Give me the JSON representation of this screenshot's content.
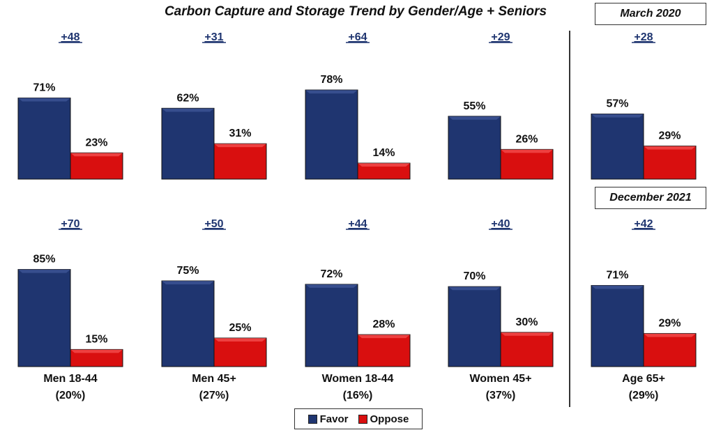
{
  "chart_data": {
    "type": "bar",
    "title": "Carbon Capture and Storage Trend by Gender/Age + Seniors",
    "periods": [
      "March 2020",
      "December 2021"
    ],
    "series_names": [
      "Favor",
      "Oppose"
    ],
    "colors": {
      "favor": "#1f3570",
      "oppose": "#d90f0f",
      "diff": "#1f3570"
    },
    "categories": [
      {
        "name": "Men 18-44",
        "share": "(20%)"
      },
      {
        "name": "Men 45+",
        "share": "(27%)"
      },
      {
        "name": "Women 18-44",
        "share": "(16%)"
      },
      {
        "name": "Women 45+",
        "share": "(37%)"
      },
      {
        "name": "Age 65+",
        "share": "(29%)"
      }
    ],
    "rows": [
      {
        "period": "March 2020",
        "groups": [
          {
            "favor": 71,
            "oppose": 23,
            "diff": "+48"
          },
          {
            "favor": 62,
            "oppose": 31,
            "diff": "+31"
          },
          {
            "favor": 78,
            "oppose": 14,
            "diff": "+64"
          },
          {
            "favor": 55,
            "oppose": 26,
            "diff": "+29"
          },
          {
            "favor": 57,
            "oppose": 29,
            "diff": "+28"
          }
        ]
      },
      {
        "period": "December 2021",
        "groups": [
          {
            "favor": 85,
            "oppose": 15,
            "diff": "+70"
          },
          {
            "favor": 75,
            "oppose": 25,
            "diff": "+50"
          },
          {
            "favor": 72,
            "oppose": 28,
            "diff": "+44"
          },
          {
            "favor": 70,
            "oppose": 30,
            "diff": "+40"
          },
          {
            "favor": 71,
            "oppose": 29,
            "diff": "+42"
          }
        ]
      }
    ]
  },
  "legend": {
    "favor_label": "Favor",
    "oppose_label": "Oppose"
  }
}
